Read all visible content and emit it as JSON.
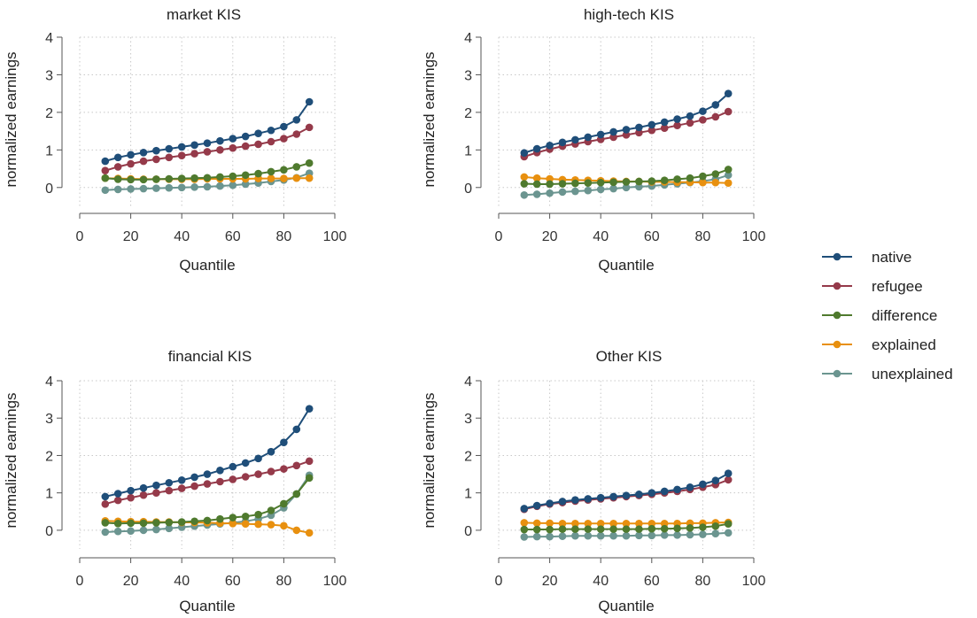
{
  "legend": {
    "placement": "right",
    "entries": [
      {
        "key": "native",
        "label": "native"
      },
      {
        "key": "refugee",
        "label": "refugee"
      },
      {
        "key": "difference",
        "label": "difference"
      },
      {
        "key": "explained",
        "label": "explained"
      },
      {
        "key": "unexplained",
        "label": "unexplained"
      }
    ]
  },
  "colors": {
    "native": "#1f4e79",
    "refugee": "#953a4a",
    "difference": "#4f7a2e",
    "explained": "#e8900f",
    "unexplained": "#6b9590"
  },
  "chart_data": [
    {
      "type": "line",
      "title": "market KIS",
      "xlabel": "Quantile",
      "ylabel": "normalized earnings",
      "xlim": [
        0,
        100
      ],
      "ylim": [
        -0.5,
        4
      ],
      "xticks": [
        0,
        20,
        40,
        60,
        80,
        100
      ],
      "yticks": [
        0,
        1,
        2,
        3,
        4
      ],
      "grid": true,
      "x": [
        10,
        15,
        20,
        25,
        30,
        35,
        40,
        45,
        50,
        55,
        60,
        65,
        70,
        75,
        80,
        85,
        90
      ],
      "series": [
        {
          "name": "native",
          "values": [
            0.7,
            0.8,
            0.87,
            0.93,
            0.98,
            1.03,
            1.08,
            1.13,
            1.18,
            1.24,
            1.3,
            1.36,
            1.44,
            1.52,
            1.62,
            1.8,
            2.28
          ]
        },
        {
          "name": "refugee",
          "values": [
            0.45,
            0.55,
            0.63,
            0.7,
            0.75,
            0.8,
            0.85,
            0.9,
            0.95,
            1.0,
            1.05,
            1.1,
            1.15,
            1.22,
            1.3,
            1.42,
            1.6
          ]
        },
        {
          "name": "difference",
          "values": [
            0.25,
            0.22,
            0.21,
            0.21,
            0.22,
            0.23,
            0.24,
            0.25,
            0.26,
            0.28,
            0.3,
            0.33,
            0.37,
            0.42,
            0.47,
            0.55,
            0.65
          ]
        },
        {
          "name": "explained",
          "values": [
            0.25,
            0.24,
            0.23,
            0.22,
            0.22,
            0.22,
            0.22,
            0.22,
            0.23,
            0.23,
            0.23,
            0.23,
            0.24,
            0.24,
            0.24,
            0.25,
            0.25
          ]
        },
        {
          "name": "unexplained",
          "values": [
            -0.07,
            -0.05,
            -0.04,
            -0.03,
            -0.02,
            -0.01,
            0.0,
            0.01,
            0.02,
            0.04,
            0.06,
            0.09,
            0.12,
            0.16,
            0.2,
            0.26,
            0.38
          ]
        }
      ]
    },
    {
      "type": "line",
      "title": "high-tech KIS",
      "xlabel": "Quantile",
      "ylabel": "normalized earnings",
      "xlim": [
        0,
        100
      ],
      "ylim": [
        -0.5,
        4
      ],
      "xticks": [
        0,
        20,
        40,
        60,
        80,
        100
      ],
      "yticks": [
        0,
        1,
        2,
        3,
        4
      ],
      "grid": true,
      "x": [
        10,
        15,
        20,
        25,
        30,
        35,
        40,
        45,
        50,
        55,
        60,
        65,
        70,
        75,
        80,
        85,
        90
      ],
      "series": [
        {
          "name": "native",
          "values": [
            0.92,
            1.03,
            1.12,
            1.2,
            1.27,
            1.34,
            1.41,
            1.48,
            1.54,
            1.6,
            1.67,
            1.74,
            1.82,
            1.9,
            2.03,
            2.2,
            2.5
          ]
        },
        {
          "name": "refugee",
          "values": [
            0.82,
            0.93,
            1.02,
            1.1,
            1.16,
            1.22,
            1.28,
            1.34,
            1.4,
            1.46,
            1.52,
            1.58,
            1.65,
            1.72,
            1.8,
            1.88,
            2.02
          ]
        },
        {
          "name": "difference",
          "values": [
            0.1,
            0.09,
            0.09,
            0.1,
            0.11,
            0.12,
            0.13,
            0.14,
            0.15,
            0.16,
            0.17,
            0.19,
            0.22,
            0.25,
            0.3,
            0.36,
            0.48
          ]
        },
        {
          "name": "explained",
          "values": [
            0.28,
            0.25,
            0.23,
            0.21,
            0.2,
            0.19,
            0.18,
            0.17,
            0.16,
            0.16,
            0.15,
            0.15,
            0.14,
            0.14,
            0.13,
            0.13,
            0.12
          ]
        },
        {
          "name": "unexplained",
          "values": [
            -0.2,
            -0.18,
            -0.15,
            -0.12,
            -0.1,
            -0.08,
            -0.05,
            -0.03,
            0.0,
            0.02,
            0.04,
            0.07,
            0.1,
            0.13,
            0.17,
            0.22,
            0.33
          ]
        }
      ]
    },
    {
      "type": "line",
      "title": "financial KIS",
      "xlabel": "Quantile",
      "ylabel": "normalized earnings",
      "xlim": [
        0,
        100
      ],
      "ylim": [
        -0.5,
        4
      ],
      "xticks": [
        0,
        20,
        40,
        60,
        80,
        100
      ],
      "yticks": [
        0,
        1,
        2,
        3,
        4
      ],
      "grid": true,
      "x": [
        10,
        15,
        20,
        25,
        30,
        35,
        40,
        45,
        50,
        55,
        60,
        65,
        70,
        75,
        80,
        85,
        90
      ],
      "series": [
        {
          "name": "native",
          "values": [
            0.9,
            0.98,
            1.06,
            1.13,
            1.2,
            1.27,
            1.34,
            1.42,
            1.5,
            1.6,
            1.7,
            1.8,
            1.92,
            2.1,
            2.35,
            2.7,
            3.25
          ]
        },
        {
          "name": "refugee",
          "values": [
            0.7,
            0.8,
            0.87,
            0.94,
            1.0,
            1.06,
            1.12,
            1.18,
            1.24,
            1.3,
            1.36,
            1.43,
            1.5,
            1.57,
            1.64,
            1.73,
            1.85
          ]
        },
        {
          "name": "difference",
          "values": [
            0.2,
            0.18,
            0.19,
            0.19,
            0.2,
            0.21,
            0.22,
            0.24,
            0.26,
            0.3,
            0.34,
            0.37,
            0.42,
            0.53,
            0.71,
            0.97,
            1.4
          ]
        },
        {
          "name": "explained",
          "values": [
            0.25,
            0.24,
            0.23,
            0.23,
            0.22,
            0.22,
            0.21,
            0.21,
            0.2,
            0.19,
            0.18,
            0.17,
            0.16,
            0.15,
            0.12,
            0.0,
            -0.07
          ]
        },
        {
          "name": "unexplained",
          "values": [
            -0.05,
            -0.03,
            -0.02,
            0.0,
            0.02,
            0.05,
            0.08,
            0.11,
            0.14,
            0.17,
            0.2,
            0.24,
            0.3,
            0.4,
            0.6,
            0.97,
            1.47
          ]
        }
      ]
    },
    {
      "type": "line",
      "title": "Other KIS",
      "xlabel": "Quantile",
      "ylabel": "normalized earnings",
      "xlim": [
        0,
        100
      ],
      "ylim": [
        -0.5,
        4
      ],
      "xticks": [
        0,
        20,
        40,
        60,
        80,
        100
      ],
      "yticks": [
        0,
        1,
        2,
        3,
        4
      ],
      "grid": true,
      "x": [
        10,
        15,
        20,
        25,
        30,
        35,
        40,
        45,
        50,
        55,
        60,
        65,
        70,
        75,
        80,
        85,
        90
      ],
      "series": [
        {
          "name": "native",
          "values": [
            0.58,
            0.66,
            0.72,
            0.77,
            0.81,
            0.84,
            0.87,
            0.9,
            0.93,
            0.96,
            1.0,
            1.04,
            1.09,
            1.15,
            1.23,
            1.33,
            1.52
          ]
        },
        {
          "name": "refugee",
          "values": [
            0.56,
            0.64,
            0.7,
            0.74,
            0.78,
            0.81,
            0.84,
            0.87,
            0.9,
            0.93,
            0.96,
            1.0,
            1.04,
            1.09,
            1.15,
            1.22,
            1.35
          ]
        },
        {
          "name": "difference",
          "values": [
            0.02,
            0.02,
            0.02,
            0.03,
            0.03,
            0.03,
            0.03,
            0.03,
            0.03,
            0.03,
            0.04,
            0.04,
            0.05,
            0.06,
            0.08,
            0.11,
            0.17
          ]
        },
        {
          "name": "explained",
          "values": [
            0.2,
            0.19,
            0.19,
            0.18,
            0.18,
            0.18,
            0.18,
            0.18,
            0.18,
            0.18,
            0.18,
            0.18,
            0.18,
            0.19,
            0.19,
            0.2,
            0.21
          ]
        },
        {
          "name": "unexplained",
          "values": [
            -0.18,
            -0.17,
            -0.17,
            -0.16,
            -0.15,
            -0.15,
            -0.15,
            -0.15,
            -0.15,
            -0.14,
            -0.14,
            -0.13,
            -0.13,
            -0.12,
            -0.11,
            -0.09,
            -0.07
          ]
        }
      ]
    }
  ]
}
